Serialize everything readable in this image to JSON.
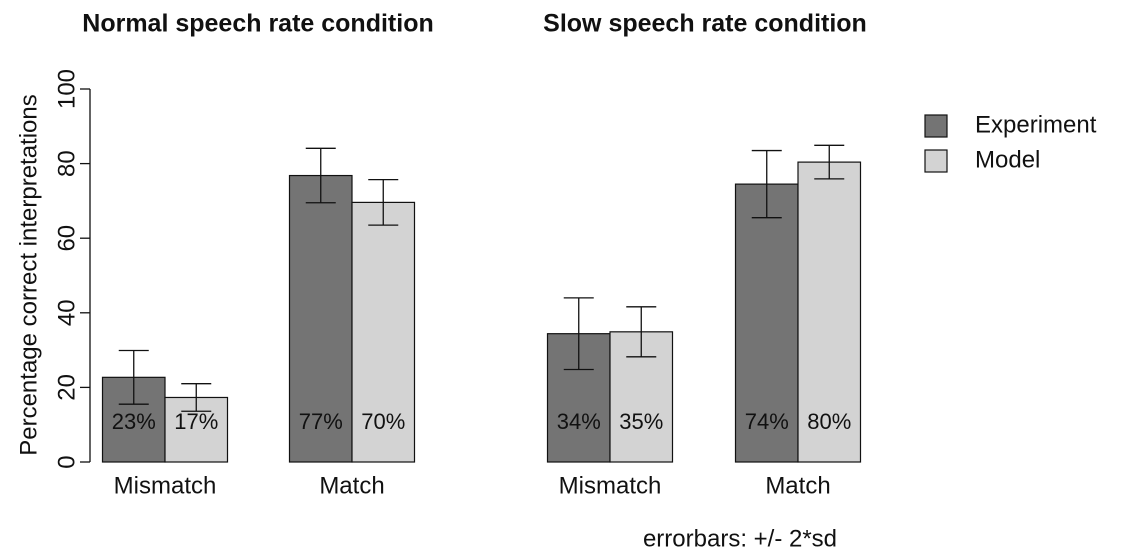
{
  "chart_data": {
    "type": "bar",
    "panel_titles": [
      "Normal speech rate condition",
      "Slow speech rate condition"
    ],
    "categories": [
      "Mismatch",
      "Match",
      "Mismatch",
      "Match"
    ],
    "ylabel": "Percentage correct interpretations",
    "ylim": [
      0,
      100
    ],
    "yticks": [
      0,
      20,
      40,
      60,
      80,
      100
    ],
    "series": [
      {
        "name": "Experiment",
        "color": "#747474",
        "values": [
          22.7,
          76.8,
          34.4,
          74.5
        ],
        "errors": [
          7.2,
          7.3,
          9.6,
          9.0
        ],
        "value_labels": [
          "23%",
          "77%",
          "34%",
          "74%"
        ]
      },
      {
        "name": "Model",
        "color": "#d3d3d3",
        "values": [
          17.3,
          69.6,
          34.9,
          80.4
        ],
        "errors": [
          3.7,
          6.1,
          6.7,
          4.5
        ],
        "value_labels": [
          "17%",
          "70%",
          "35%",
          "80%"
        ]
      }
    ],
    "annotation": "errorbars: +/- 2*sd"
  }
}
